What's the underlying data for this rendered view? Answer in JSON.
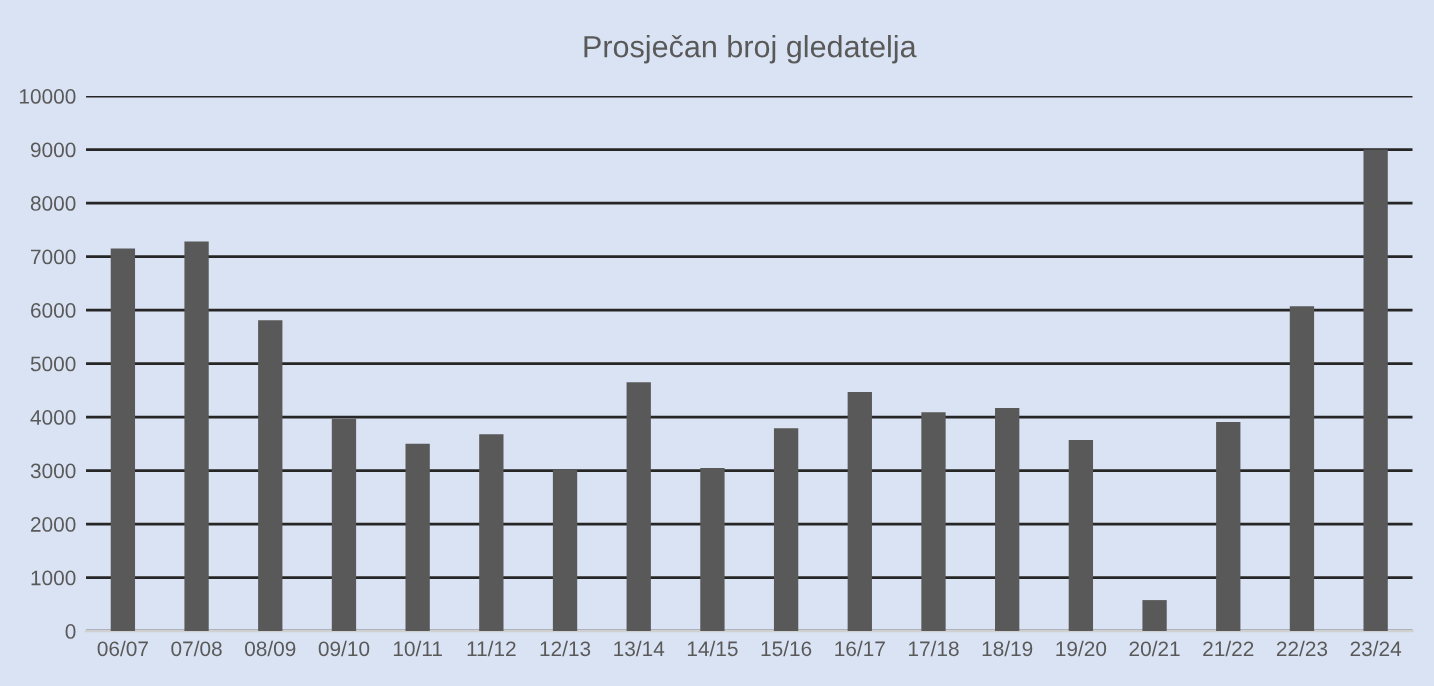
{
  "chart_data": {
    "type": "bar",
    "title": "Prosječan broj gledatelja",
    "categories": [
      "06/07",
      "07/08",
      "08/09",
      "09/10",
      "10/11",
      "11/12",
      "12/13",
      "13/14",
      "14/15",
      "15/16",
      "16/17",
      "17/18",
      "18/19",
      "19/20",
      "20/21",
      "21/22",
      "22/23",
      "23/24"
    ],
    "values": [
      7150,
      7280,
      5810,
      3970,
      3500,
      3680,
      3010,
      4650,
      3050,
      3790,
      4470,
      4090,
      4170,
      3570,
      580,
      3910,
      6070,
      9000
    ],
    "color": "#595959",
    "ylim": [
      0,
      10000
    ],
    "yticks": [
      0,
      1000,
      2000,
      3000,
      4000,
      5000,
      6000,
      7000,
      8000,
      9000,
      10000
    ],
    "grid": "y"
  }
}
